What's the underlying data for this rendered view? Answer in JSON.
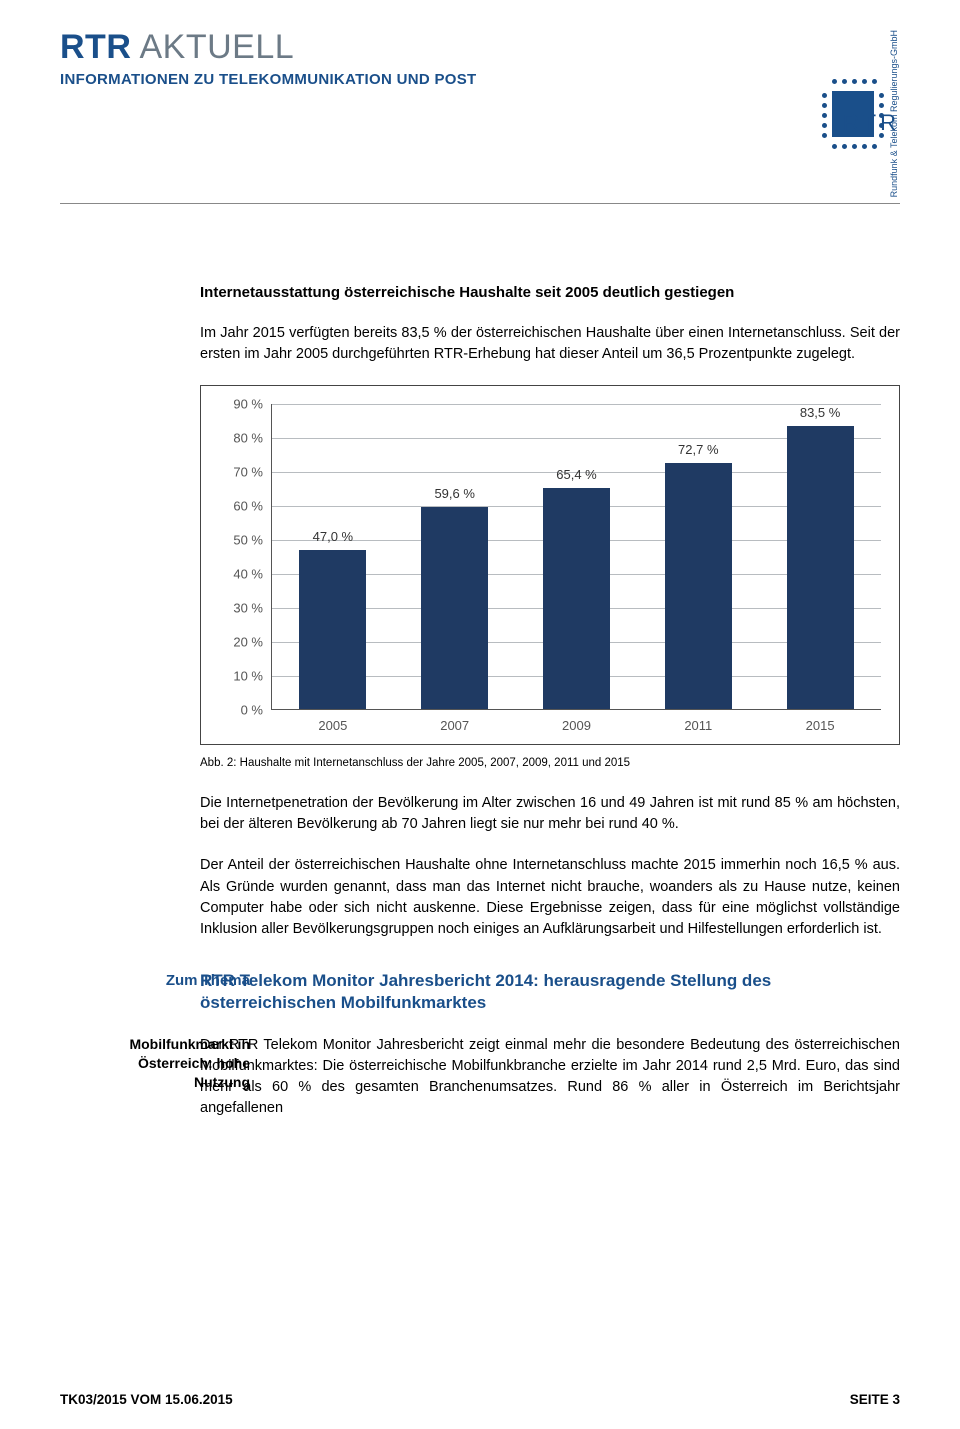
{
  "header": {
    "brand_bold": "RTR",
    "brand_light": "AKTUELL",
    "subtitle": "INFORMATIONEN ZU TELEKOMMUNIKATION UND POST",
    "logo_vert_text": "Rundfunk & Telekom\nRegulierungs-GmbH",
    "logo_rtr": "RTR"
  },
  "section1": {
    "heading": "Internetausstattung österreichische Haushalte seit 2005 deutlich gestiegen",
    "para1": "Im Jahr 2015 verfügten bereits 83,5 % der österreichischen Haushalte über einen Internetanschluss. Seit der ersten im Jahr 2005 durchgeführten RTR-Erhebung hat dieser Anteil um 36,5 Prozentpunkte zugelegt.",
    "caption": "Abb. 2: Haushalte mit Internetanschluss der Jahre 2005, 2007, 2009, 2011 und 2015",
    "para2": "Die Internetpenetration der Bevölkerung im Alter zwischen 16 und 49 Jahren ist mit rund 85 % am höchsten, bei der älteren Bevölkerung ab 70 Jahren liegt sie nur mehr bei rund 40 %.",
    "para3": "Der Anteil der österreichischen Haushalte ohne Internetanschluss machte 2015 immerhin noch 16,5 % aus. Als Gründe wurden genannt, dass man das Internet nicht brauche, woanders als zu Hause nutze, keinen Computer habe oder sich nicht auskenne. Diese Ergebnisse zeigen, dass für eine möglichst vollständige Inklusion aller Bevölkerungsgruppen noch einiges an Aufklärungsarbeit und Hilfestellungen erforderlich ist."
  },
  "chart": {
    "type": "bar",
    "categories": [
      "2005",
      "2007",
      "2009",
      "2011",
      "2015"
    ],
    "values": [
      47.0,
      59.6,
      65.4,
      72.7,
      83.5
    ],
    "value_labels": [
      "47,0 %",
      "59,6 %",
      "65,4 %",
      "72,7 %",
      "83,5 %"
    ],
    "bar_color": "#1f3a63",
    "ylim": [
      0,
      90
    ],
    "yticks": [
      0,
      10,
      20,
      30,
      40,
      50,
      60,
      70,
      80,
      90
    ],
    "ytick_labels": [
      "0 %",
      "10 %",
      "20 %",
      "30 %",
      "40 %",
      "50 %",
      "60 %",
      "70 %",
      "80 %",
      "90 %"
    ],
    "grid_color": "#b8bcc0",
    "axis_color": "#555555",
    "bar_width_ratio": 0.55,
    "label_fontsize": 13,
    "value_fontsize": 13
  },
  "section2": {
    "side_label": "Zum Thema",
    "heading": "RTR Telekom Monitor Jahresbericht 2014: herausragende Stellung des österreichischen Mobilfunkmarktes",
    "side_sublabel": "Mobilfunkmarkt in Österreich: hohe Nutzung",
    "para1": "Der RTR Telekom Monitor Jahresbericht zeigt einmal mehr die besondere Bedeutung des österreichischen Mobilfunkmarktes: Die österreichische Mobilfunkbranche erzielte im Jahr 2014 rund 2,5 Mrd. Euro, das sind mehr als 60 % des gesamten Branchenumsatzes. Rund 86 % aller in Österreich im Berichtsjahr angefallenen"
  },
  "footer": {
    "left": "TK03/2015 VOM 15.06.2015",
    "right": "SEITE 3"
  }
}
